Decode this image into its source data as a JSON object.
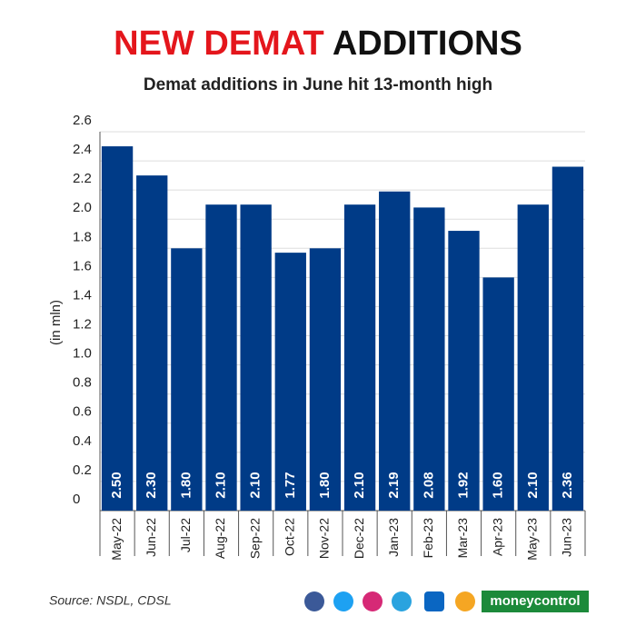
{
  "chart_data": {
    "type": "bar",
    "title_highlight": "NEW DEMAT",
    "title": "ADDITIONS",
    "subtitle": "Demat additions in June hit 13-month high",
    "y_label": "(in mln)",
    "categories": [
      "May-22",
      "Jun-22",
      "Jul-22",
      "Aug-22",
      "Sep-22",
      "Oct-22",
      "Nov-22",
      "Dec-22",
      "Jan-23",
      "Feb-23",
      "Mar-23",
      "Apr-23",
      "May-23",
      "Jun-23"
    ],
    "values": [
      2.5,
      2.3,
      1.8,
      2.1,
      2.1,
      1.77,
      1.8,
      2.1,
      2.19,
      2.08,
      1.92,
      1.6,
      2.1,
      2.36
    ],
    "value_labels": [
      "2.50",
      "2.30",
      "1.80",
      "2.10",
      "2.10",
      "1.77",
      "1.80",
      "2.10",
      "2.19",
      "2.08",
      "1.92",
      "1.60",
      "2.10",
      "2.36"
    ],
    "color": "#003b87",
    "ylim": [
      0,
      2.6
    ],
    "yticks": [
      0,
      0.2,
      0.4,
      0.6,
      0.8,
      {
        "value": 1,
        "label": "1.0"
      },
      1.2,
      1.4,
      1.6,
      1.8,
      {
        "value": 2,
        "label": "2.0"
      },
      2.2,
      2.4,
      2.6
    ],
    "grid": true,
    "source": "Source: NSDL, CDSL",
    "brand": "moneycontrol"
  }
}
